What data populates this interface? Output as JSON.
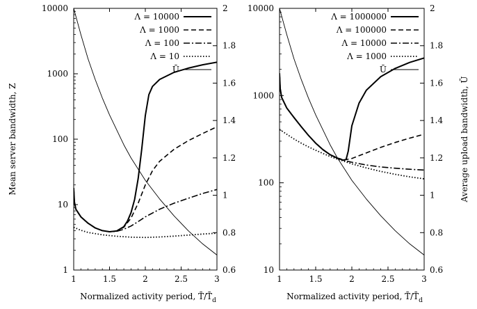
{
  "chart_data": [
    {
      "type": "line",
      "title": "",
      "xlabel": "Normalized activity period, T̄/T̄",
      "xlabel_sub": "d",
      "ylabel": "Mean server bandwidth, Z",
      "ylabel_right": "",
      "y_scale": "log",
      "xlim": [
        1,
        3
      ],
      "ylim": [
        1,
        10000
      ],
      "y2lim": [
        0.6,
        2
      ],
      "x_ticks": [
        "1",
        "1.5",
        "2",
        "2.5",
        "3"
      ],
      "y_ticks": [
        "1",
        "10",
        "100",
        "1000",
        "10000"
      ],
      "y2_ticks": [
        "0.6",
        "0.8",
        "1",
        "1.2",
        "1.4",
        "1.6",
        "1.8",
        "2"
      ],
      "legend_position": "top-right",
      "series": [
        {
          "name": "Λ = 10000",
          "style": "solid-thick",
          "axis": "left",
          "points": [
            [
              1.0,
              18
            ],
            [
              1.01,
              11
            ],
            [
              1.03,
              8.5
            ],
            [
              1.1,
              6.5
            ],
            [
              1.2,
              5.2
            ],
            [
              1.3,
              4.4
            ],
            [
              1.4,
              4.0
            ],
            [
              1.5,
              3.85
            ],
            [
              1.6,
              3.95
            ],
            [
              1.7,
              4.6
            ],
            [
              1.75,
              5.6
            ],
            [
              1.8,
              7.5
            ],
            [
              1.85,
              12
            ],
            [
              1.9,
              25
            ],
            [
              1.95,
              70
            ],
            [
              2.0,
              230
            ],
            [
              2.05,
              480
            ],
            [
              2.1,
              640
            ],
            [
              2.2,
              820
            ],
            [
              2.4,
              1050
            ],
            [
              2.6,
              1220
            ],
            [
              2.8,
              1370
            ],
            [
              3.0,
              1500
            ]
          ]
        },
        {
          "name": "Λ = 1000",
          "style": "dashed",
          "axis": "left",
          "points": [
            [
              1.0,
              18
            ],
            [
              1.01,
              11
            ],
            [
              1.03,
              8.5
            ],
            [
              1.1,
              6.5
            ],
            [
              1.2,
              5.2
            ],
            [
              1.3,
              4.4
            ],
            [
              1.4,
              4.0
            ],
            [
              1.5,
              3.85
            ],
            [
              1.6,
              3.95
            ],
            [
              1.7,
              4.5
            ],
            [
              1.8,
              6.2
            ],
            [
              1.9,
              10.5
            ],
            [
              2.0,
              20
            ],
            [
              2.1,
              33
            ],
            [
              2.2,
              46
            ],
            [
              2.4,
              70
            ],
            [
              2.6,
              95
            ],
            [
              2.8,
              122
            ],
            [
              3.0,
              155
            ]
          ]
        },
        {
          "name": "Λ = 100",
          "style": "dashdot",
          "axis": "left",
          "points": [
            [
              1.0,
              18
            ],
            [
              1.01,
              11
            ],
            [
              1.03,
              8.5
            ],
            [
              1.1,
              6.5
            ],
            [
              1.2,
              5.2
            ],
            [
              1.3,
              4.4
            ],
            [
              1.4,
              4.0
            ],
            [
              1.5,
              3.85
            ],
            [
              1.6,
              3.9
            ],
            [
              1.7,
              4.2
            ],
            [
              1.8,
              4.7
            ],
            [
              1.9,
              5.5
            ],
            [
              2.0,
              6.5
            ],
            [
              2.2,
              8.5
            ],
            [
              2.4,
              10.5
            ],
            [
              2.6,
              12.5
            ],
            [
              2.8,
              14.8
            ],
            [
              3.0,
              17
            ]
          ]
        },
        {
          "name": "Λ = 10",
          "style": "dotted",
          "axis": "left",
          "points": [
            [
              1.0,
              4.5
            ],
            [
              1.1,
              4.05
            ],
            [
              1.2,
              3.75
            ],
            [
              1.4,
              3.45
            ],
            [
              1.6,
              3.28
            ],
            [
              1.8,
              3.18
            ],
            [
              2.0,
              3.15
            ],
            [
              2.2,
              3.2
            ],
            [
              2.4,
              3.3
            ],
            [
              2.6,
              3.42
            ],
            [
              2.8,
              3.55
            ],
            [
              3.0,
              3.65
            ]
          ]
        },
        {
          "name": "Ū",
          "style": "thin",
          "axis": "right",
          "points": [
            [
              1.0,
              2.0
            ],
            [
              1.1,
              1.86
            ],
            [
              1.2,
              1.73
            ],
            [
              1.3,
              1.62
            ],
            [
              1.4,
              1.52
            ],
            [
              1.5,
              1.43
            ],
            [
              1.6,
              1.35
            ],
            [
              1.7,
              1.27
            ],
            [
              1.8,
              1.2
            ],
            [
              1.9,
              1.14
            ],
            [
              2.0,
              1.08
            ],
            [
              2.2,
              0.98
            ],
            [
              2.4,
              0.89
            ],
            [
              2.6,
              0.81
            ],
            [
              2.8,
              0.74
            ],
            [
              3.0,
              0.68
            ]
          ]
        }
      ]
    },
    {
      "type": "line",
      "title": "",
      "xlabel": "Normalized activity period, T̄/T̄",
      "xlabel_sub": "d",
      "ylabel": "",
      "ylabel_right": "Average upload bandwidth, Ū",
      "y_scale": "log",
      "xlim": [
        1,
        3
      ],
      "ylim": [
        10,
        10000
      ],
      "y2lim": [
        0.6,
        2
      ],
      "x_ticks": [
        "1",
        "1.5",
        "2",
        "2.5",
        "3"
      ],
      "y_ticks": [
        "10",
        "100",
        "1000",
        "10000"
      ],
      "y2_ticks": [
        "0.6",
        "0.8",
        "1",
        "1.2",
        "1.4",
        "1.6",
        "1.8",
        "2"
      ],
      "legend_position": "top-right",
      "series": [
        {
          "name": "Λ = 1000000",
          "style": "solid-thick",
          "axis": "left",
          "points": [
            [
              1.0,
              1800
            ],
            [
              1.01,
              1200
            ],
            [
              1.03,
              950
            ],
            [
              1.1,
              720
            ],
            [
              1.2,
              560
            ],
            [
              1.3,
              440
            ],
            [
              1.4,
              350
            ],
            [
              1.5,
              285
            ],
            [
              1.6,
              240
            ],
            [
              1.7,
              210
            ],
            [
              1.8,
              192
            ],
            [
              1.88,
              182
            ],
            [
              1.92,
              185
            ],
            [
              1.95,
              230
            ],
            [
              2.0,
              450
            ],
            [
              2.1,
              820
            ],
            [
              2.2,
              1150
            ],
            [
              2.4,
              1650
            ],
            [
              2.6,
              2050
            ],
            [
              2.8,
              2400
            ],
            [
              3.0,
              2700
            ]
          ]
        },
        {
          "name": "Λ = 100000",
          "style": "dashed",
          "axis": "left",
          "points": [
            [
              1.0,
              1800
            ],
            [
              1.01,
              1200
            ],
            [
              1.03,
              950
            ],
            [
              1.1,
              720
            ],
            [
              1.2,
              560
            ],
            [
              1.3,
              440
            ],
            [
              1.4,
              350
            ],
            [
              1.5,
              285
            ],
            [
              1.6,
              240
            ],
            [
              1.7,
              210
            ],
            [
              1.8,
              192
            ],
            [
              1.9,
              183
            ],
            [
              2.0,
              190
            ],
            [
              2.2,
              220
            ],
            [
              2.4,
              255
            ],
            [
              2.6,
              290
            ],
            [
              2.8,
              325
            ],
            [
              3.0,
              360
            ]
          ]
        },
        {
          "name": "Λ = 10000",
          "style": "dashdot",
          "axis": "left",
          "points": [
            [
              1.0,
              1800
            ],
            [
              1.01,
              1200
            ],
            [
              1.03,
              950
            ],
            [
              1.1,
              720
            ],
            [
              1.2,
              560
            ],
            [
              1.3,
              440
            ],
            [
              1.4,
              350
            ],
            [
              1.5,
              285
            ],
            [
              1.6,
              240
            ],
            [
              1.7,
              210
            ],
            [
              1.8,
              192
            ],
            [
              1.9,
              180
            ],
            [
              2.0,
              172
            ],
            [
              2.2,
              160
            ],
            [
              2.4,
              152
            ],
            [
              2.6,
              147
            ],
            [
              2.8,
              143
            ],
            [
              3.0,
              140
            ]
          ]
        },
        {
          "name": "Λ = 1000",
          "style": "dotted",
          "axis": "left",
          "points": [
            [
              1.0,
              410
            ],
            [
              1.1,
              360
            ],
            [
              1.2,
              318
            ],
            [
              1.3,
              285
            ],
            [
              1.4,
              258
            ],
            [
              1.5,
              236
            ],
            [
              1.6,
              217
            ],
            [
              1.7,
              200
            ],
            [
              1.8,
              187
            ],
            [
              2.0,
              165
            ],
            [
              2.2,
              148
            ],
            [
              2.4,
              135
            ],
            [
              2.6,
              125
            ],
            [
              2.8,
              117
            ],
            [
              3.0,
              111
            ]
          ]
        },
        {
          "name": "Ū",
          "style": "thin",
          "axis": "right",
          "points": [
            [
              1.0,
              2.0
            ],
            [
              1.1,
              1.86
            ],
            [
              1.2,
              1.73
            ],
            [
              1.3,
              1.62
            ],
            [
              1.4,
              1.52
            ],
            [
              1.5,
              1.43
            ],
            [
              1.6,
              1.35
            ],
            [
              1.7,
              1.27
            ],
            [
              1.8,
              1.2
            ],
            [
              1.9,
              1.14
            ],
            [
              2.0,
              1.08
            ],
            [
              2.2,
              0.98
            ],
            [
              2.4,
              0.89
            ],
            [
              2.6,
              0.81
            ],
            [
              2.8,
              0.74
            ],
            [
              3.0,
              0.68
            ]
          ]
        }
      ]
    }
  ]
}
